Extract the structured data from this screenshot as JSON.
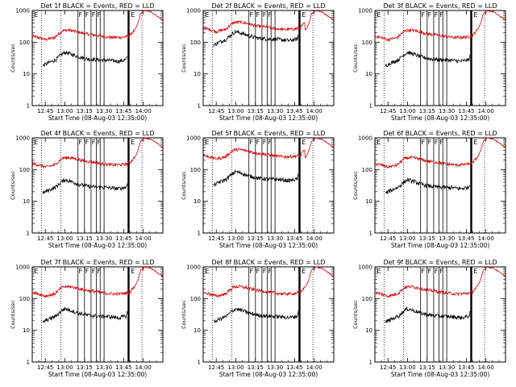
{
  "chart_data": {
    "type": "line",
    "layout": "3x3 grid",
    "xlabel": "Start Time (08-Aug-03 12:35:00)",
    "ylabel": "Counts/sec",
    "x_ticks": [
      "12:45",
      "13:00",
      "13:15",
      "13:30",
      "13:45",
      "14:00"
    ],
    "x_tick_minutes": [
      10,
      25,
      40,
      55,
      70,
      85
    ],
    "x_range_minutes": [
      0,
      100
    ],
    "y_scale": "log",
    "y_ticks": [
      "1",
      "10",
      "100",
      "1000"
    ],
    "y_tick_values": [
      1,
      10,
      100,
      1000
    ],
    "ylim": [
      1,
      1000
    ],
    "series_names": [
      "Events",
      "LLD"
    ],
    "series_colors": {
      "Events": "#000000",
      "LLD": "#dd0000"
    },
    "grid": false,
    "panels": [
      {
        "title": "Det 1f BLACK = Events, RED = LLD",
        "markers": [
          "E",
          "F",
          "F",
          "F",
          "F",
          "E"
        ]
      },
      {
        "title": "Det 2f BLACK = Events, RED = LLD",
        "markers": [
          "E",
          "F",
          "F",
          "F",
          "F",
          "E"
        ]
      },
      {
        "title": "Det 3f BLACK = Events, RED = LLD",
        "markers": [
          "E",
          "F",
          "F",
          "F",
          "F",
          "E"
        ]
      },
      {
        "title": "Det 4f BLACK = Events, RED = LLD",
        "markers": [
          "E",
          "F",
          "F",
          "F",
          "F",
          "E"
        ]
      },
      {
        "title": "Det 5f BLACK = Events, RED = LLD",
        "markers": [
          "E",
          "F",
          "F",
          "F",
          "F",
          "E"
        ]
      },
      {
        "title": "Det 6f BLACK = Events, RED = LLD",
        "markers": [
          "E",
          "F",
          "F",
          "F",
          "F",
          "E"
        ]
      },
      {
        "title": "Det 7f BLACK = Events, RED = LLD",
        "markers": [
          "E",
          "F",
          "F",
          "F",
          "F",
          "E"
        ]
      },
      {
        "title": "Det 8f BLACK = Events, RED = LLD",
        "markers": [
          "E",
          "F",
          "F",
          "F",
          "F",
          "E"
        ]
      },
      {
        "title": "Det 9f BLACK = Events, RED = LLD",
        "markers": [
          "E",
          "F",
          "F",
          "F",
          "F",
          "E"
        ]
      }
    ],
    "dotted_lines_minutes": [
      7,
      22,
      84
    ],
    "transition_lines_minutes": [
      35,
      40,
      45,
      49,
      52,
      55
    ],
    "shaded_bar_minutes": [
      73,
      74.5
    ],
    "lld_curve": {
      "minutes": [
        0,
        5,
        10,
        17,
        23,
        28,
        33,
        40,
        47,
        55,
        62,
        70,
        74.5,
        79,
        81,
        83,
        86,
        91,
        96,
        100
      ],
      "values": [
        155,
        140,
        120,
        140,
        230,
        240,
        220,
        185,
        170,
        150,
        140,
        145,
        160,
        260,
        400,
        800,
        1000,
        900,
        650,
        500
      ]
    },
    "events_curve": {
      "minutes": [
        8,
        12,
        18,
        22,
        25,
        30,
        35,
        42,
        50,
        58,
        66,
        72,
        73
      ],
      "values": [
        18,
        22,
        28,
        40,
        48,
        42,
        35,
        30,
        28,
        27,
        25,
        28,
        40
      ]
    }
  }
}
